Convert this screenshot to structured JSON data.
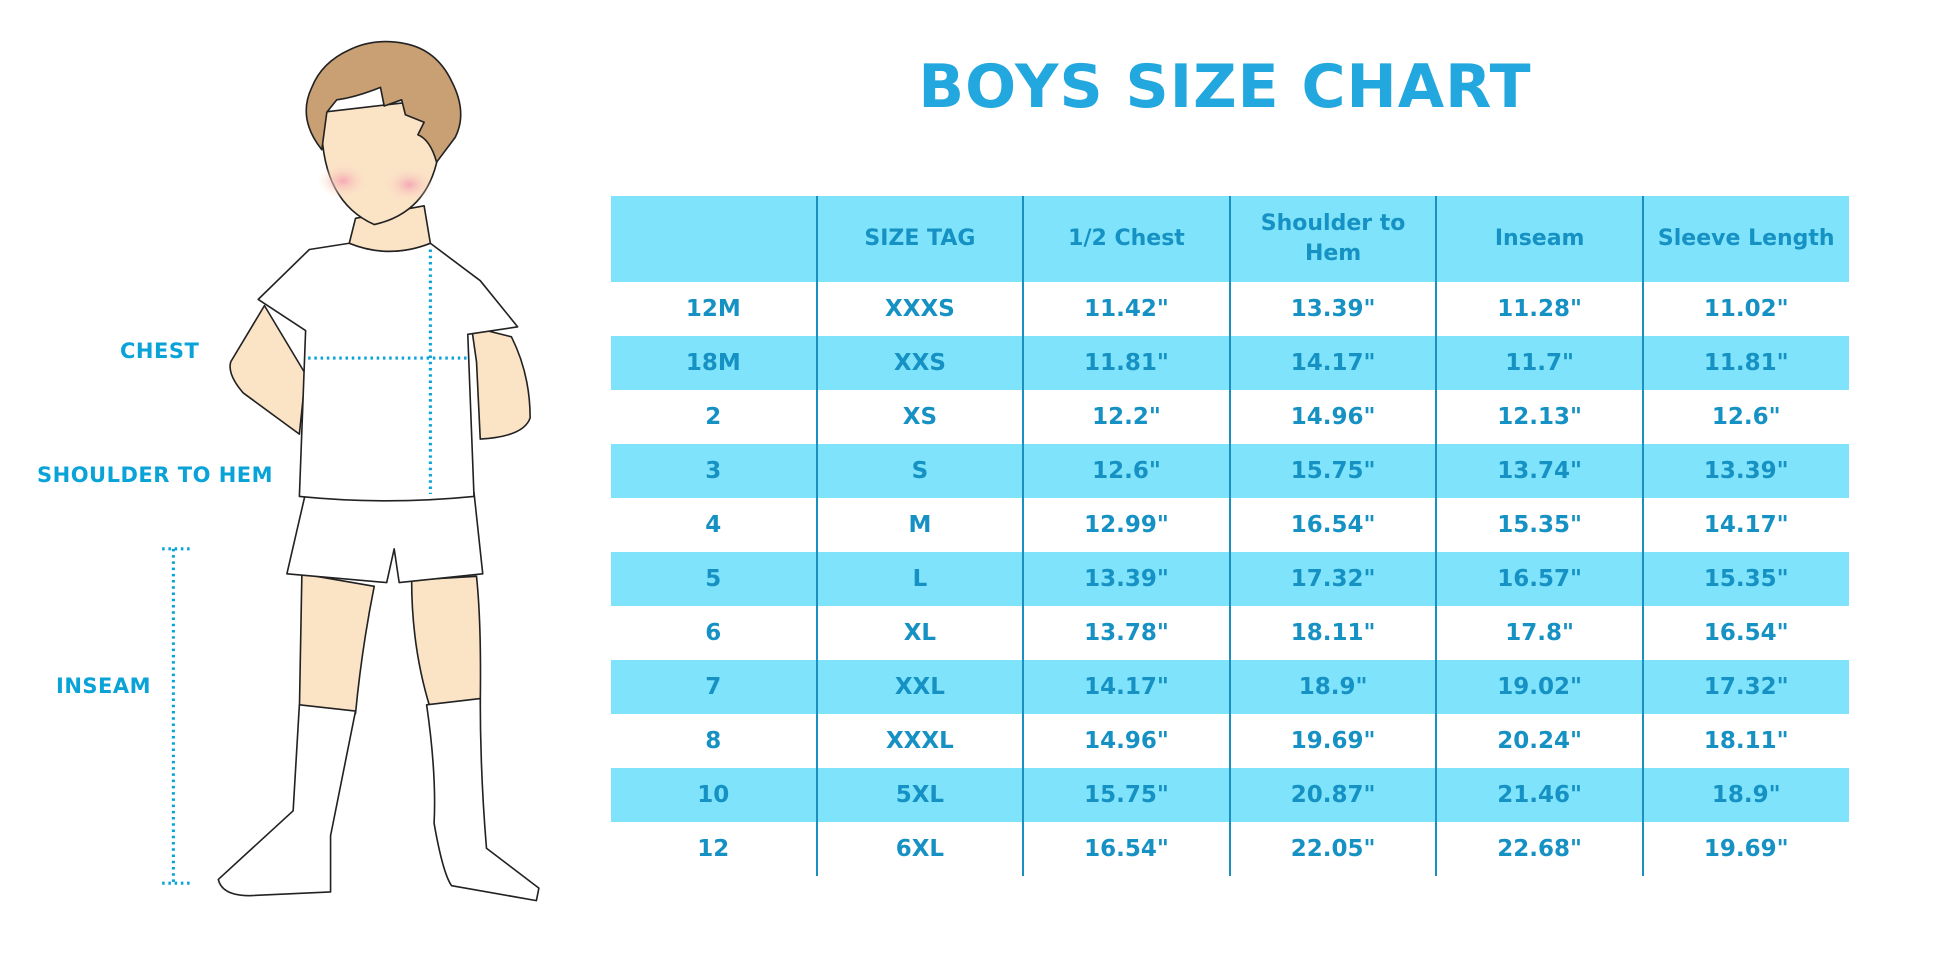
{
  "title": "BOYS SIZE CHART",
  "figure_labels": {
    "chest": "CHEST",
    "shoulder_to_hem": "SHOULDER TO HEM",
    "inseam": "INSEAM"
  },
  "colors": {
    "title": "#22a8de",
    "header_bg": "#7ee3fb",
    "text": "#1591c3",
    "measure_line": "#0aa3d8"
  },
  "table": {
    "headers": [
      "",
      "SIZE TAG",
      "1/2 Chest",
      "Shoulder to Hem",
      "Inseam",
      "Sleeve Length"
    ],
    "rows": [
      [
        "12M",
        "XXXS",
        "11.42\"",
        "13.39\"",
        "11.28\"",
        "11.02\""
      ],
      [
        "18M",
        "XXS",
        "11.81\"",
        "14.17\"",
        "11.7\"",
        "11.81\""
      ],
      [
        "2",
        "XS",
        "12.2\"",
        "14.96\"",
        "12.13\"",
        "12.6\""
      ],
      [
        "3",
        "S",
        "12.6\"",
        "15.75\"",
        "13.74\"",
        "13.39\""
      ],
      [
        "4",
        "M",
        "12.99\"",
        "16.54\"",
        "15.35\"",
        "14.17\""
      ],
      [
        "5",
        "L",
        "13.39\"",
        "17.32\"",
        "16.57\"",
        "15.35\""
      ],
      [
        "6",
        "XL",
        "13.78\"",
        "18.11\"",
        "17.8\"",
        "16.54\""
      ],
      [
        "7",
        "XXL",
        "14.17\"",
        "18.9\"",
        "19.02\"",
        "17.32\""
      ],
      [
        "8",
        "XXXL",
        "14.96\"",
        "19.69\"",
        "20.24\"",
        "18.11\""
      ],
      [
        "10",
        "5XL",
        "15.75\"",
        "20.87\"",
        "21.46\"",
        "18.9\""
      ],
      [
        "12",
        "6XL",
        "16.54\"",
        "22.05\"",
        "22.68\"",
        "19.69\""
      ]
    ]
  }
}
